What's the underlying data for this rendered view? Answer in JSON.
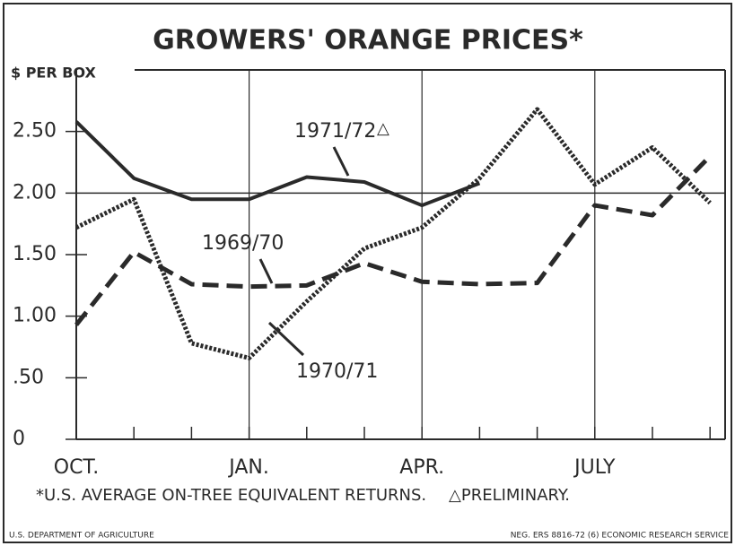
{
  "chart_data": {
    "type": "line",
    "title": "GROWERS' ORANGE PRICES*",
    "y_label": "$ PER BOX",
    "categories": [
      "OCT.",
      null,
      null,
      "JAN.",
      null,
      null,
      "APR.",
      null,
      null,
      "JULY",
      null,
      null
    ],
    "series": [
      {
        "name": "1971/72",
        "color": "#2a2a2a",
        "style": "solid",
        "values": [
          2.58,
          2.12,
          1.95,
          1.95,
          2.13,
          2.09,
          1.9,
          2.08,
          null,
          null,
          null,
          null
        ]
      },
      {
        "name": "1969/70",
        "color": "#2a2a2a",
        "style": "dashed",
        "values": [
          0.93,
          1.52,
          1.26,
          1.24,
          1.25,
          1.43,
          1.28,
          1.26,
          1.27,
          1.9,
          1.82,
          2.3
        ]
      },
      {
        "name": "1970/71",
        "color": "#2a2a2a",
        "style": "dotted",
        "values": [
          1.72,
          1.95,
          0.78,
          0.66,
          1.12,
          1.55,
          1.72,
          2.12,
          2.68,
          2.07,
          2.37,
          1.92
        ]
      }
    ],
    "preliminary_mark": "△",
    "ylim": [
      0,
      3
    ],
    "yticks": [
      0,
      {
        "value": 0.5,
        "label": ".50"
      },
      {
        "value": 1,
        "label": "1.00"
      },
      {
        "value": 1.5,
        "label": "1.50"
      },
      {
        "value": 2,
        "label": "2.00"
      },
      {
        "value": 2.5,
        "label": "2.50"
      }
    ],
    "grid": true,
    "footnote": "*U.S. AVERAGE ON-TREE EQUIVALENT RETURNS.",
    "footnote_preliminary": "△PRELIMINARY.",
    "source_left": "U.S. DEPARTMENT OF AGRICULTURE",
    "source_right": "NEG. ERS 8816-72 (6)    ECONOMIC RESEARCH SERVICE"
  }
}
